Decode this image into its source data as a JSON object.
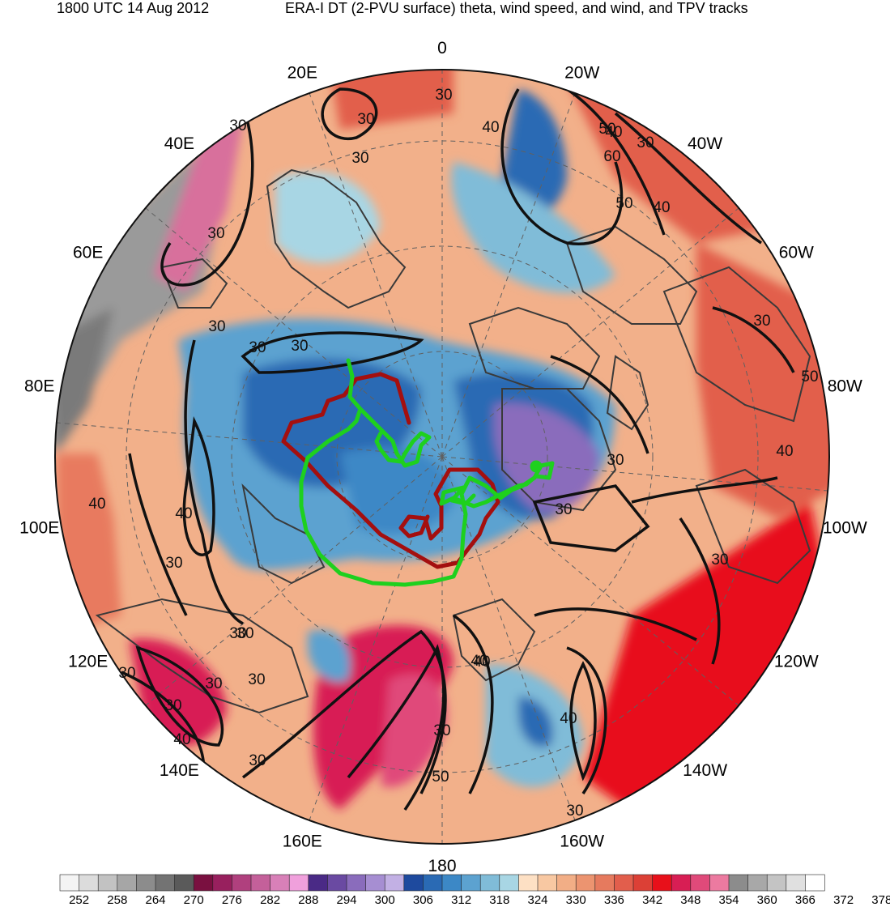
{
  "header": {
    "left": "1800 UTC 14 Aug 2012",
    "right": "ERA-I DT (2-PVU surface) theta, wind speed, and wind, and TPV tracks"
  },
  "longitude_labels": [
    {
      "label": "0",
      "bearing": 0
    },
    {
      "label": "20W",
      "bearing": 20
    },
    {
      "label": "40W",
      "bearing": 40
    },
    {
      "label": "60W",
      "bearing": 60
    },
    {
      "label": "80W",
      "bearing": 80
    },
    {
      "label": "100W",
      "bearing": 100
    },
    {
      "label": "120W",
      "bearing": 120
    },
    {
      "label": "140W",
      "bearing": 140
    },
    {
      "label": "160W",
      "bearing": 160
    },
    {
      "label": "180",
      "bearing": 180
    },
    {
      "label": "160E",
      "bearing": 200
    },
    {
      "label": "140E",
      "bearing": 220
    },
    {
      "label": "120E",
      "bearing": 240
    },
    {
      "label": "100E",
      "bearing": 260
    },
    {
      "label": "80E",
      "bearing": 280
    },
    {
      "label": "60E",
      "bearing": 300
    },
    {
      "label": "40E",
      "bearing": 320
    },
    {
      "label": "20E",
      "bearing": 340
    }
  ],
  "contour_labels": [
    "30",
    "30",
    "40",
    "30",
    "40",
    "50",
    "60",
    "50",
    "40",
    "30",
    "30",
    "30",
    "30",
    "30",
    "30",
    "40",
    "30",
    "40",
    "30",
    "30",
    "30",
    "30",
    "30",
    "40",
    "30",
    "30",
    "50",
    "40",
    "30",
    "30",
    "30",
    "40",
    "30",
    "50",
    "40",
    "30",
    "30",
    "40"
  ],
  "colorbar": {
    "ticks": [
      "252",
      "258",
      "264",
      "270",
      "276",
      "282",
      "288",
      "294",
      "300",
      "306",
      "312",
      "318",
      "324",
      "330",
      "336",
      "342",
      "348",
      "354",
      "360",
      "366",
      "372",
      "378"
    ],
    "colors": [
      "#f4f4f4",
      "#dcdcdc",
      "#c2c2c2",
      "#a6a6a6",
      "#8c8c8c",
      "#737373",
      "#5a5a5a",
      "#7a1040",
      "#98205e",
      "#b0407e",
      "#c4609a",
      "#d880b8",
      "#f0a0dc",
      "#4a2a86",
      "#6a4aa2",
      "#8a6cbc",
      "#a68ed2",
      "#c2b0e4",
      "#1e4a9e",
      "#2a6ab4",
      "#3c88c6",
      "#5ca2d0",
      "#80bcd8",
      "#a8d6e4",
      "#fde0c4",
      "#f8c8a2",
      "#f2ae86",
      "#ec9470",
      "#e67a5e",
      "#e25e4c",
      "#dc4036",
      "#e8101a",
      "#d81e54",
      "#e04a7a",
      "#ec7aa0",
      "#8c8c8c",
      "#a8a8a8",
      "#c4c4c4",
      "#e0e0e0",
      "#ffffff"
    ]
  },
  "tracks": [
    {
      "name": "",
      "color": "#a40f0f"
    },
    {
      "name": "",
      "color": "#1ed01e"
    }
  ]
}
